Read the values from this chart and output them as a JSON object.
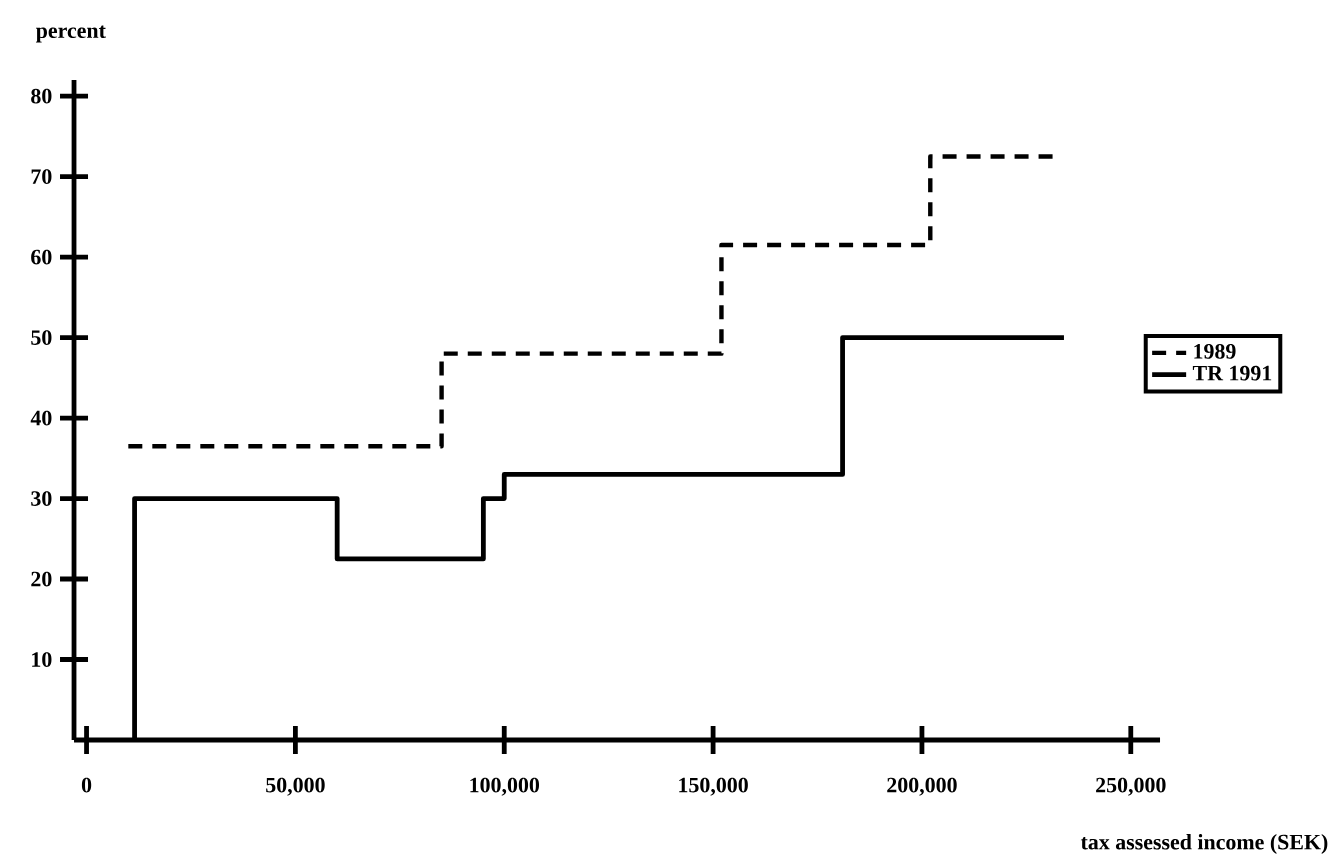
{
  "chart_data": {
    "type": "step",
    "ylabel": "percent",
    "xlabel": "tax assessed income (SEK)",
    "xlim": [
      -3000,
      257000
    ],
    "ylim": [
      0,
      82
    ],
    "xticks": [
      0,
      {
        "value": 50000,
        "label": "50,000"
      },
      {
        "value": 100000,
        "label": "100,000"
      },
      {
        "value": 150000,
        "label": "150,000"
      },
      {
        "value": 200000,
        "label": "200,000"
      },
      {
        "value": 250000,
        "label": "250,000"
      }
    ],
    "yticks": [
      10,
      20,
      30,
      40,
      50,
      60,
      70,
      80
    ],
    "legend": "right",
    "grid": false,
    "series": [
      {
        "name": "1989",
        "color": "#000000",
        "line_style": "dashed",
        "x": [
          10000,
          85000,
          152000,
          202000,
          232000
        ],
        "values": [
          36.5,
          48,
          61.5,
          72.5,
          72.5
        ]
      },
      {
        "name": "TR 1991",
        "color": "#000000",
        "line_style": "solid",
        "x": [
          11500,
          11500,
          60000,
          95000,
          100000,
          181000,
          234000
        ],
        "values": [
          0,
          30,
          22.5,
          30,
          33,
          50,
          50
        ]
      }
    ]
  }
}
